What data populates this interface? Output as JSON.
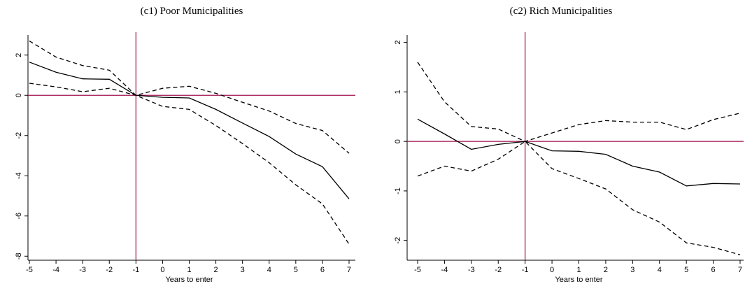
{
  "chart_data": [
    {
      "type": "line",
      "title": "(c1) Poor Municipalities",
      "xlabel": "Years to enter",
      "ylabel": "",
      "x": [
        -5,
        -4,
        -3,
        -2,
        -1,
        0,
        1,
        2,
        3,
        4,
        5,
        6,
        7
      ],
      "xticks": [
        "-5",
        "-4",
        "-3",
        "-2",
        "-1",
        "0",
        "1",
        "2",
        "3",
        "4",
        "5",
        "6",
        "7"
      ],
      "yticks": [
        "-8",
        "-6",
        "-4",
        "-2",
        "0",
        "2"
      ],
      "xlim": [
        -5,
        7
      ],
      "ylim": [
        -8.2,
        3.0
      ],
      "ytick_values": [
        -8,
        -6,
        -4,
        -2,
        0,
        2
      ],
      "reference_lines": {
        "x": -1,
        "y": 0,
        "color": "#a0114e"
      },
      "grid": false,
      "series": [
        {
          "style": "solid",
          "values": [
            1.65,
            1.15,
            0.82,
            0.8,
            0.0,
            -0.1,
            -0.13,
            -0.7,
            -1.38,
            -2.05,
            -2.92,
            -3.55,
            -5.15
          ]
        },
        {
          "style": "dashed",
          "values": [
            2.7,
            1.9,
            1.48,
            1.25,
            0.0,
            0.35,
            0.45,
            0.1,
            -0.35,
            -0.78,
            -1.4,
            -1.75,
            -2.88
          ]
        },
        {
          "style": "dashed",
          "values": [
            0.6,
            0.42,
            0.18,
            0.35,
            0.0,
            -0.55,
            -0.7,
            -1.5,
            -2.4,
            -3.35,
            -4.45,
            -5.4,
            -7.4
          ]
        }
      ]
    },
    {
      "type": "line",
      "title": "(c2) Rich Municipalities",
      "xlabel": "Years to enter",
      "ylabel": "",
      "x": [
        -5,
        -4,
        -3,
        -2,
        -1,
        0,
        1,
        2,
        3,
        4,
        5,
        6,
        7
      ],
      "xticks": [
        "-5",
        "-4",
        "-3",
        "-2",
        "-1",
        "0",
        "1",
        "2",
        "3",
        "4",
        "5",
        "6",
        "7"
      ],
      "yticks": [
        "-2",
        "-1",
        "0",
        "1",
        "2"
      ],
      "xlim": [
        -5,
        7
      ],
      "ylim": [
        -2.4,
        2.15
      ],
      "ytick_values": [
        -2,
        -1,
        0,
        1,
        2
      ],
      "reference_lines": {
        "x": -1,
        "y": 0,
        "color": "#a0114e"
      },
      "grid": false,
      "series": [
        {
          "style": "solid",
          "values": [
            0.45,
            0.15,
            -0.16,
            -0.06,
            0.0,
            -0.19,
            -0.2,
            -0.26,
            -0.5,
            -0.62,
            -0.9,
            -0.85,
            -0.86
          ]
        },
        {
          "style": "dashed",
          "values": [
            1.6,
            0.8,
            0.3,
            0.25,
            0.0,
            0.17,
            0.34,
            0.42,
            0.39,
            0.39,
            0.24,
            0.44,
            0.57
          ]
        },
        {
          "style": "dashed",
          "values": [
            -0.7,
            -0.5,
            -0.6,
            -0.36,
            0.0,
            -0.55,
            -0.75,
            -0.96,
            -1.38,
            -1.63,
            -2.05,
            -2.14,
            -2.29
          ]
        }
      ]
    }
  ]
}
